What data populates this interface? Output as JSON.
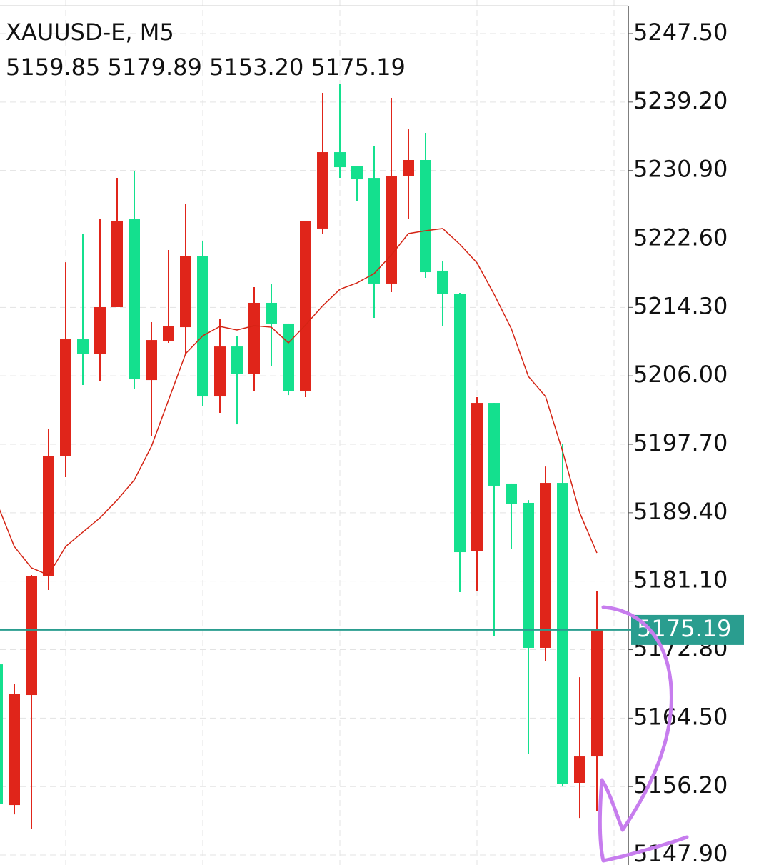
{
  "chart_data": {
    "type": "candlestick",
    "title": "XAUUSD-E, M5",
    "subtitle": "5159.85 5179.89 5153.20 5175.19",
    "up_color": "#e0251a",
    "down_color": "#14e08e",
    "ma_color": "#d42414",
    "price_line_color": "#2a9d8f",
    "grid": true,
    "ylim": [
      5146.69,
      5251.57
    ],
    "yticks": [
      {
        "value": 5247.5,
        "label": "5247.50"
      },
      {
        "value": 5239.2,
        "label": "5239.20"
      },
      {
        "value": 5230.9,
        "label": "5230.90"
      },
      {
        "value": 5222.6,
        "label": "5222.60"
      },
      {
        "value": 5214.3,
        "label": "5214.30"
      },
      {
        "value": 5206,
        "label": "5206.00"
      },
      {
        "value": 5197.7,
        "label": "5197.70"
      },
      {
        "value": 5189.4,
        "label": "5189.40"
      },
      {
        "value": 5181.1,
        "label": "5181.10"
      },
      {
        "value": 5172.8,
        "label": "5172.80"
      },
      {
        "value": 5164.5,
        "label": "5164.50"
      },
      {
        "value": 5156.2,
        "label": "5156.20"
      },
      {
        "value": 5147.9,
        "label": "5147.90"
      }
    ],
    "current_price": 5175.19,
    "candles": [
      {
        "open": 5171.02,
        "high": 5171.46,
        "low": 5153.5,
        "close": 5154.13
      },
      {
        "open": 5153.96,
        "high": 5168.6,
        "low": 5152.83,
        "close": 5167.39
      },
      {
        "open": 5167.3,
        "high": 5181.85,
        "low": 5151.1,
        "close": 5181.68
      },
      {
        "open": 5181.68,
        "high": 5199.52,
        "low": 5180.03,
        "close": 5196.31
      },
      {
        "open": 5196.31,
        "high": 5219.78,
        "low": 5193.72,
        "close": 5210.43
      },
      {
        "open": 5210.43,
        "high": 5223.25,
        "low": 5204.89,
        "close": 5208.7
      },
      {
        "open": 5208.7,
        "high": 5224.98,
        "low": 5205.41,
        "close": 5214.33
      },
      {
        "open": 5214.33,
        "high": 5230.0,
        "low": 5214.33,
        "close": 5224.81
      },
      {
        "open": 5224.98,
        "high": 5230.78,
        "low": 5204.37,
        "close": 5205.58
      },
      {
        "open": 5205.49,
        "high": 5212.51,
        "low": 5198.74,
        "close": 5210.34
      },
      {
        "open": 5210.26,
        "high": 5221.26,
        "low": 5210.0,
        "close": 5211.99
      },
      {
        "open": 5211.9,
        "high": 5226.89,
        "low": 5208.61,
        "close": 5220.48
      },
      {
        "open": 5220.48,
        "high": 5222.3,
        "low": 5202.38,
        "close": 5203.5
      },
      {
        "open": 5203.5,
        "high": 5212.86,
        "low": 5201.51,
        "close": 5209.56
      },
      {
        "open": 5209.56,
        "high": 5210.86,
        "low": 5200.12,
        "close": 5206.19
      },
      {
        "open": 5206.19,
        "high": 5216.75,
        "low": 5204.19,
        "close": 5214.85
      },
      {
        "open": 5214.85,
        "high": 5217.1,
        "low": 5207.14,
        "close": 5212.34
      },
      {
        "open": 5212.34,
        "high": 5212.34,
        "low": 5203.67,
        "close": 5204.19
      },
      {
        "open": 5204.19,
        "high": 5224.81,
        "low": 5203.42,
        "close": 5224.81
      },
      {
        "open": 5223.86,
        "high": 5240.31,
        "low": 5223.16,
        "close": 5233.12
      },
      {
        "open": 5233.12,
        "high": 5241.44,
        "low": 5230.0,
        "close": 5231.3
      },
      {
        "open": 5231.39,
        "high": 5231.39,
        "low": 5227.15,
        "close": 5229.83
      },
      {
        "open": 5230.0,
        "high": 5233.82,
        "low": 5213.03,
        "close": 5217.19
      },
      {
        "open": 5217.19,
        "high": 5239.71,
        "low": 5216.15,
        "close": 5230.26
      },
      {
        "open": 5230.18,
        "high": 5235.89,
        "low": 5225.07,
        "close": 5232.17
      },
      {
        "open": 5232.17,
        "high": 5235.46,
        "low": 5217.88,
        "close": 5218.57
      },
      {
        "open": 5218.75,
        "high": 5219.87,
        "low": 5211.99,
        "close": 5215.89
      },
      {
        "open": 5215.89,
        "high": 5216.06,
        "low": 5179.77,
        "close": 5184.62
      },
      {
        "open": 5184.79,
        "high": 5203.42,
        "low": 5179.86,
        "close": 5202.72
      },
      {
        "open": 5202.72,
        "high": 5202.72,
        "low": 5174.49,
        "close": 5192.68
      },
      {
        "open": 5192.94,
        "high": 5192.94,
        "low": 5184.97,
        "close": 5190.51
      },
      {
        "open": 5190.6,
        "high": 5190.94,
        "low": 5160.2,
        "close": 5173.02
      },
      {
        "open": 5173.02,
        "high": 5195.01,
        "low": 5171.46,
        "close": 5193.02
      },
      {
        "open": 5193.02,
        "high": 5197.7,
        "low": 5156.21,
        "close": 5156.56
      },
      {
        "open": 5156.65,
        "high": 5169.46,
        "low": 5152.4,
        "close": 5159.85
      },
      {
        "open": 5159.85,
        "high": 5179.89,
        "low": 5153.2,
        "close": 5175.19
      }
    ],
    "ma_values": [
      5190.51,
      5185.31,
      5182.72,
      5181.85,
      5185.31,
      5187.05,
      5188.78,
      5190.94,
      5193.37,
      5197.44,
      5203.07,
      5208.7,
      5210.86,
      5211.99,
      5211.56,
      5212.08,
      5211.9,
      5210.0,
      5212.16,
      5214.5,
      5216.49,
      5217.27,
      5218.4,
      5220.65,
      5223.25,
      5223.6,
      5223.86,
      5221.95,
      5219.7,
      5215.89,
      5211.73,
      5205.93,
      5203.5,
      5196.83,
      5189.38,
      5184.53
    ]
  }
}
